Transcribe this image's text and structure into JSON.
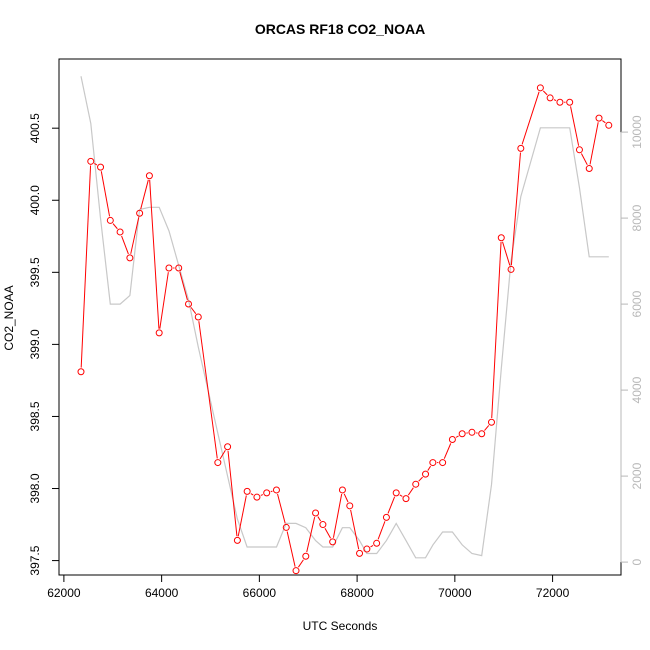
{
  "chart_data": {
    "type": "line",
    "title": "ORCAS RF18 CO2_NOAA",
    "xlabel": "UTC Seconds",
    "ylabel": "CO2_NOAA",
    "xlim": [
      61900,
      73400
    ],
    "ylim": [
      397.4,
      400.98
    ],
    "y2lim": [
      -300,
      11700
    ],
    "x_ticks": [
      62000,
      64000,
      66000,
      68000,
      70000,
      72000
    ],
    "y_ticks": [
      397.5,
      398.0,
      398.5,
      399.0,
      399.5,
      400.0,
      400.5
    ],
    "y2_ticks": [
      0,
      2000,
      4000,
      6000,
      8000,
      10000
    ],
    "grid": false,
    "series": [
      {
        "color": "#ff0000",
        "axis": "left",
        "style": "line+points",
        "x": [
          62350,
          62550,
          62750,
          62950,
          63150,
          63350,
          63550,
          63750,
          63950,
          64150,
          64350,
          64550,
          64750,
          65150,
          65350,
          65550,
          65750,
          65950,
          66150,
          66350,
          66550,
          66750,
          66950,
          67150,
          67300,
          67500,
          67700,
          67850,
          68050,
          68200,
          68400,
          68600,
          68800,
          69000,
          69200,
          69400,
          69550,
          69750,
          69950,
          70150,
          70350,
          70550,
          70750,
          70950,
          71150,
          71350,
          71750,
          71950,
          72150,
          72350,
          72550,
          72750,
          72950,
          73150
        ],
        "y": [
          398.81,
          400.27,
          400.23,
          399.86,
          399.78,
          399.6,
          399.91,
          400.17,
          399.08,
          399.53,
          399.53,
          399.28,
          399.19,
          398.18,
          398.29,
          397.64,
          397.98,
          397.94,
          397.97,
          397.99,
          397.73,
          397.43,
          397.53,
          397.83,
          397.75,
          397.63,
          397.99,
          397.88,
          397.55,
          397.58,
          397.62,
          397.8,
          397.97,
          397.93,
          398.03,
          398.1,
          398.18,
          398.18,
          398.34,
          398.38,
          398.39,
          398.38,
          398.46,
          399.74,
          399.52,
          400.36,
          400.78,
          400.71,
          400.68,
          400.68,
          400.35,
          400.22,
          400.57,
          400.52
        ]
      },
      {
        "color": "#c8c8c8",
        "axis": "right",
        "style": "line",
        "x": [
          62350,
          62550,
          62750,
          62950,
          63150,
          63350,
          63550,
          63750,
          63950,
          64150,
          64350,
          64550,
          64750,
          65150,
          65350,
          65550,
          65750,
          65950,
          66150,
          66350,
          66550,
          66750,
          66950,
          67150,
          67300,
          67500,
          67700,
          67850,
          68050,
          68200,
          68400,
          68600,
          68800,
          69000,
          69200,
          69400,
          69550,
          69750,
          69950,
          70150,
          70350,
          70550,
          70750,
          70950,
          71150,
          71350,
          71750,
          71950,
          72150,
          72350,
          72550,
          72750,
          72950,
          73150
        ],
        "y": [
          11300,
          10200,
          8000,
          6000,
          6000,
          6200,
          8200,
          8250,
          8250,
          7700,
          6900,
          6100,
          5000,
          3000,
          2000,
          1000,
          350,
          350,
          350,
          350,
          900,
          900,
          800,
          500,
          350,
          350,
          800,
          800,
          500,
          200,
          200,
          500,
          900,
          500,
          100,
          100,
          400,
          700,
          700,
          400,
          200,
          150,
          1800,
          4500,
          7000,
          8500,
          10100,
          10100,
          10100,
          10100,
          8700,
          7100,
          7100,
          7100
        ]
      }
    ]
  }
}
